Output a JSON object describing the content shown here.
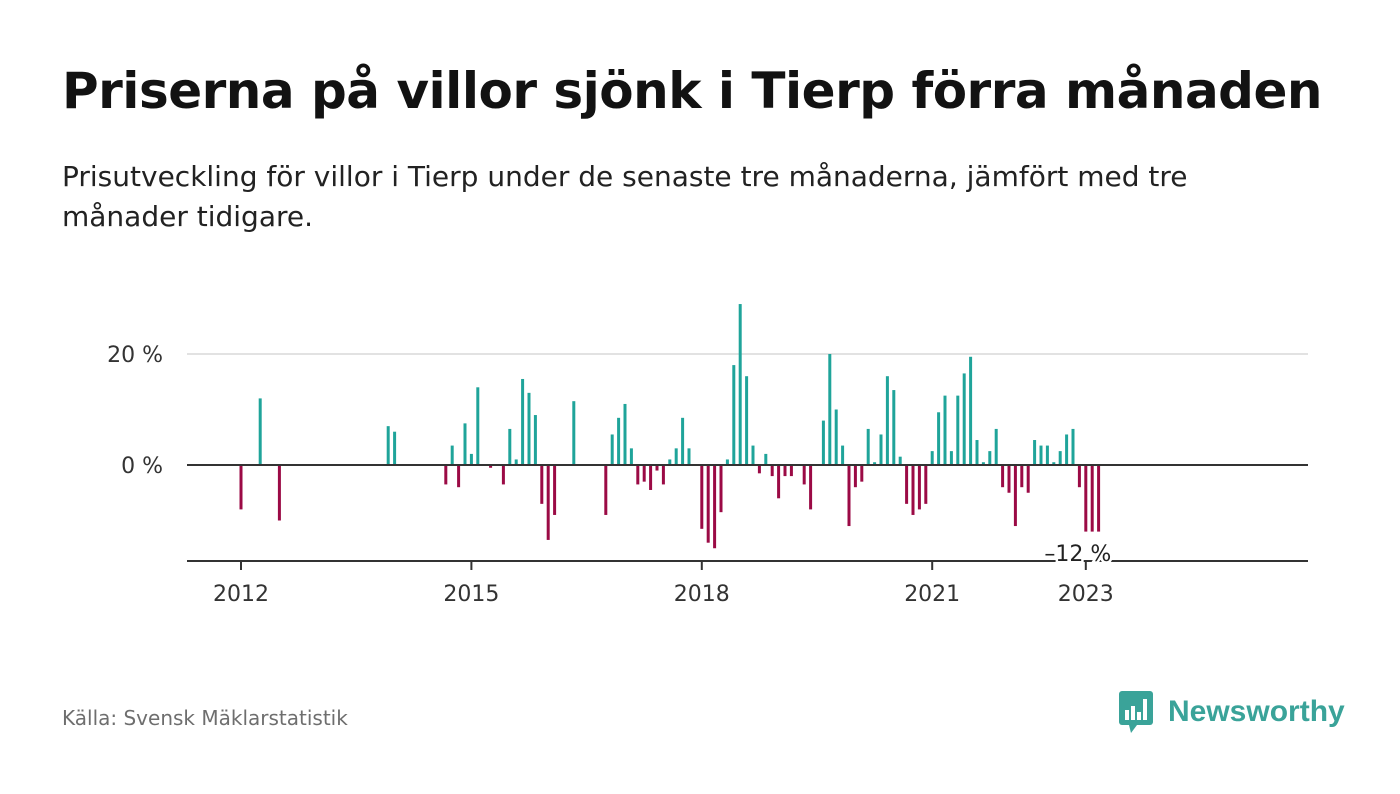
{
  "title": "Priserna på villor sjönk i Tierp förra månaden",
  "subtitle": "Prisutveckling för villor i Tierp under de senaste tre månaderna, jämfört med tre månader tidigare.",
  "source": "Källa: Svensk Mäklarstatistik",
  "brand": {
    "name": "Newsworthy",
    "icon": "newsworthy-logo-icon"
  },
  "colors": {
    "positive": "#1fa49a",
    "negative": "#9b0a45",
    "axis": "#333333",
    "grid": "#d9d9d9",
    "brand": "#3aa399"
  },
  "chart_data": {
    "type": "bar",
    "y_axis": {
      "unit": "%",
      "ticks": [
        0,
        20
      ],
      "tick_labels": [
        "0 %",
        "20 %"
      ],
      "ylim": [
        -17,
        30
      ],
      "grid": true
    },
    "x_axis": {
      "tick_labels": [
        "2012",
        "2015",
        "2018",
        "2021",
        "2023"
      ],
      "tick_years": [
        2012,
        2015,
        2018,
        2021,
        2023
      ]
    },
    "annotation": {
      "text": "–12 %",
      "date": "2023-01"
    },
    "series": [
      {
        "name": "",
        "points": [
          {
            "date": "2012-01",
            "value": -8
          },
          {
            "date": "2012-04",
            "value": 12
          },
          {
            "date": "2012-07",
            "value": -10
          },
          {
            "date": "2013-12",
            "value": 7
          },
          {
            "date": "2014-01",
            "value": 6
          },
          {
            "date": "2014-09",
            "value": -3.5
          },
          {
            "date": "2014-10",
            "value": 3.5
          },
          {
            "date": "2014-11",
            "value": -4
          },
          {
            "date": "2014-12",
            "value": 7.5
          },
          {
            "date": "2015-01",
            "value": 2
          },
          {
            "date": "2015-02",
            "value": 14
          },
          {
            "date": "2015-04",
            "value": -0.5
          },
          {
            "date": "2015-06",
            "value": -3.5
          },
          {
            "date": "2015-07",
            "value": 6.5
          },
          {
            "date": "2015-08",
            "value": 1
          },
          {
            "date": "2015-09",
            "value": 15.5
          },
          {
            "date": "2015-10",
            "value": 13
          },
          {
            "date": "2015-11",
            "value": 9
          },
          {
            "date": "2015-12",
            "value": -7
          },
          {
            "date": "2016-01",
            "value": -13.5
          },
          {
            "date": "2016-02",
            "value": -9
          },
          {
            "date": "2016-05",
            "value": 11.5
          },
          {
            "date": "2016-10",
            "value": -9
          },
          {
            "date": "2016-11",
            "value": 5.5
          },
          {
            "date": "2016-12",
            "value": 8.5
          },
          {
            "date": "2017-01",
            "value": 11
          },
          {
            "date": "2017-02",
            "value": 3
          },
          {
            "date": "2017-03",
            "value": -3.5
          },
          {
            "date": "2017-04",
            "value": -3
          },
          {
            "date": "2017-05",
            "value": -4.5
          },
          {
            "date": "2017-06",
            "value": -1
          },
          {
            "date": "2017-07",
            "value": -3.5
          },
          {
            "date": "2017-08",
            "value": 1
          },
          {
            "date": "2017-09",
            "value": 3
          },
          {
            "date": "2017-10",
            "value": 8.5
          },
          {
            "date": "2017-11",
            "value": 3
          },
          {
            "date": "2018-01",
            "value": -11.5
          },
          {
            "date": "2018-02",
            "value": -14
          },
          {
            "date": "2018-03",
            "value": -15
          },
          {
            "date": "2018-04",
            "value": -8.5
          },
          {
            "date": "2018-05",
            "value": 1
          },
          {
            "date": "2018-06",
            "value": 18
          },
          {
            "date": "2018-07",
            "value": 29
          },
          {
            "date": "2018-08",
            "value": 16
          },
          {
            "date": "2018-09",
            "value": 3.5
          },
          {
            "date": "2018-10",
            "value": -1.5
          },
          {
            "date": "2018-11",
            "value": 2
          },
          {
            "date": "2018-12",
            "value": -2
          },
          {
            "date": "2019-01",
            "value": -6
          },
          {
            "date": "2019-02",
            "value": -2
          },
          {
            "date": "2019-03",
            "value": -2
          },
          {
            "date": "2019-05",
            "value": -3.5
          },
          {
            "date": "2019-06",
            "value": -8
          },
          {
            "date": "2019-08",
            "value": 8
          },
          {
            "date": "2019-09",
            "value": 20
          },
          {
            "date": "2019-10",
            "value": 10
          },
          {
            "date": "2019-11",
            "value": 3.5
          },
          {
            "date": "2019-12",
            "value": -11
          },
          {
            "date": "2020-01",
            "value": -4
          },
          {
            "date": "2020-02",
            "value": -3
          },
          {
            "date": "2020-03",
            "value": 6.5
          },
          {
            "date": "2020-04",
            "value": 0.5
          },
          {
            "date": "2020-05",
            "value": 5.5
          },
          {
            "date": "2020-06",
            "value": 16
          },
          {
            "date": "2020-07",
            "value": 13.5
          },
          {
            "date": "2020-08",
            "value": 1.5
          },
          {
            "date": "2020-09",
            "value": -7
          },
          {
            "date": "2020-10",
            "value": -9
          },
          {
            "date": "2020-11",
            "value": -8
          },
          {
            "date": "2020-12",
            "value": -7
          },
          {
            "date": "2021-01",
            "value": 2.5
          },
          {
            "date": "2021-02",
            "value": 9.5
          },
          {
            "date": "2021-03",
            "value": 12.5
          },
          {
            "date": "2021-04",
            "value": 2.5
          },
          {
            "date": "2021-05",
            "value": 12.5
          },
          {
            "date": "2021-06",
            "value": 16.5
          },
          {
            "date": "2021-07",
            "value": 19.5
          },
          {
            "date": "2021-08",
            "value": 4.5
          },
          {
            "date": "2021-09",
            "value": 0.5
          },
          {
            "date": "2021-10",
            "value": 2.5
          },
          {
            "date": "2021-11",
            "value": 6.5
          },
          {
            "date": "2021-12",
            "value": -4
          },
          {
            "date": "2022-01",
            "value": -5
          },
          {
            "date": "2022-02",
            "value": -11
          },
          {
            "date": "2022-03",
            "value": -4
          },
          {
            "date": "2022-04",
            "value": -5
          },
          {
            "date": "2022-05",
            "value": 4.5
          },
          {
            "date": "2022-06",
            "value": 3.5
          },
          {
            "date": "2022-07",
            "value": 3.5
          },
          {
            "date": "2022-08",
            "value": 0.5
          },
          {
            "date": "2022-09",
            "value": 2.5
          },
          {
            "date": "2022-10",
            "value": 5.5
          },
          {
            "date": "2022-11",
            "value": 6.5
          },
          {
            "date": "2022-12",
            "value": -4
          },
          {
            "date": "2023-01",
            "value": -12
          },
          {
            "date": "2023-02",
            "value": -12
          },
          {
            "date": "2023-03",
            "value": -12
          }
        ]
      }
    ]
  }
}
